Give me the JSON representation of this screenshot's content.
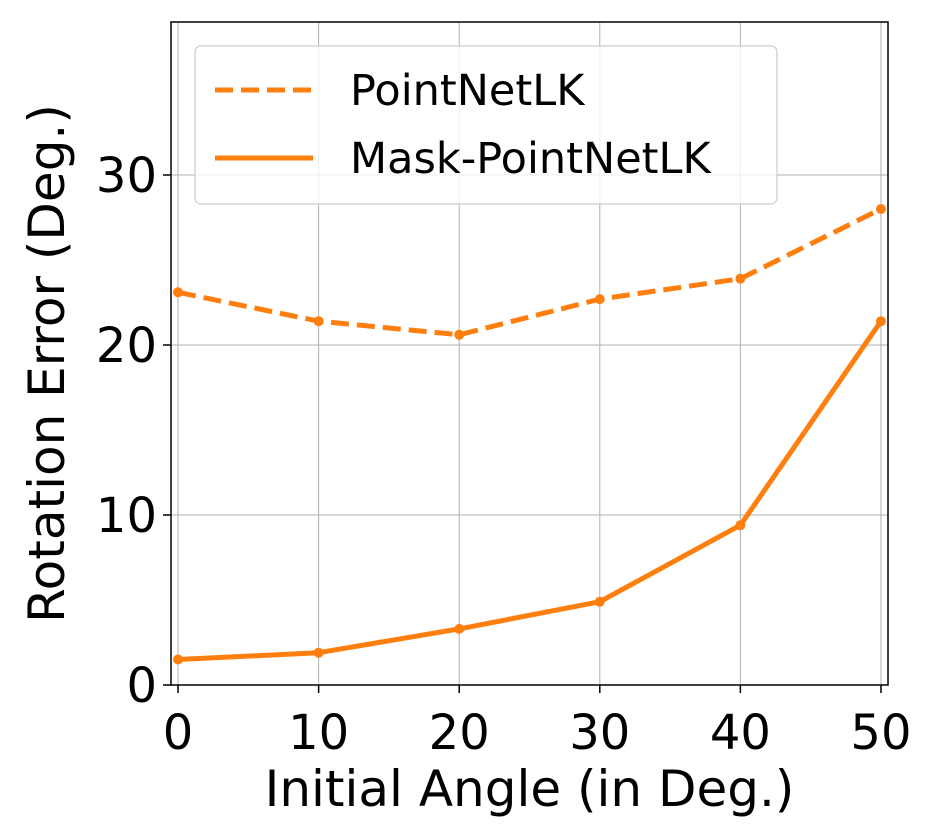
{
  "chart_data": {
    "type": "line",
    "title": "",
    "xlabel": "Initial Angle (in Deg.)",
    "ylabel": "Rotation Error (Deg.)",
    "xlim": [
      -0.5,
      50.5
    ],
    "ylim": [
      0,
      39
    ],
    "xticks": [
      0,
      10,
      20,
      30,
      40,
      50
    ],
    "yticks": [
      0,
      10,
      20,
      30
    ],
    "grid": true,
    "legend_position": "top-left",
    "x": [
      0,
      10,
      20,
      30,
      40,
      50
    ],
    "series": [
      {
        "name": "PointNetLK",
        "values": [
          23.1,
          21.4,
          20.6,
          22.7,
          23.9,
          28.0
        ],
        "color": "#ff7f0e",
        "style": "dashed"
      },
      {
        "name": "Mask-PointNetLK",
        "values": [
          1.5,
          1.9,
          3.3,
          4.9,
          9.4,
          21.4
        ],
        "color": "#ff7f0e",
        "style": "solid"
      }
    ]
  }
}
